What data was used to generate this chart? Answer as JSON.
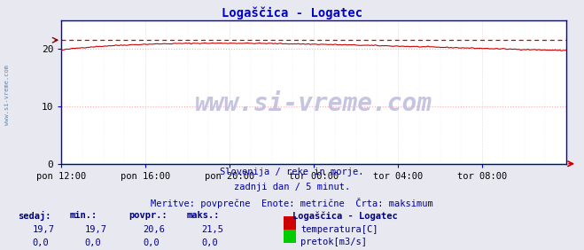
{
  "title": "Logaščica - Logatec",
  "title_color": "#0000cc",
  "bg_color": "#e8e8f0",
  "plot_bg_color": "#ffffff",
  "grid_color_h": "#ffaaaa",
  "grid_color_v": "#cccccc",
  "border_color": "#0000cc",
  "x_labels": [
    "pon 12:00",
    "pon 16:00",
    "pon 20:00",
    "tor 00:00",
    "tor 04:00",
    "tor 08:00"
  ],
  "x_ticks": [
    0,
    48,
    96,
    144,
    192,
    240
  ],
  "x_max": 288,
  "y_ticks": [
    0,
    10,
    20
  ],
  "y_max": 25,
  "y_min": 0,
  "temp_max": 21.5,
  "temp_color": "#cc0000",
  "pretok_color": "#00cc00",
  "max_line_color": "#cc0000",
  "watermark": "www.si-vreme.com",
  "watermark_color": "#aaaacc",
  "left_label": "www.si-vreme.com",
  "subtitle1": "Slovenija / reke in morje.",
  "subtitle2": "zadnji dan / 5 minut.",
  "subtitle3": "Meritve: povprečne  Enote: metrične  Črta: maksimum",
  "subtitle_color": "#0000aa",
  "legend_title": "Logaščica - Logatec",
  "legend_title_color": "#000080",
  "legend_temp_label": "temperatura[C]",
  "legend_pretok_label": "pretok[m3/s]",
  "table_headers": [
    "sedaj:",
    "min.:",
    "povpr.:",
    "maks.:"
  ],
  "table_temp": [
    "19,7",
    "19,7",
    "20,6",
    "21,5"
  ],
  "table_pretok": [
    "0,0",
    "0,0",
    "0,0",
    "0,0"
  ],
  "table_color": "#000080",
  "n_points": 289
}
